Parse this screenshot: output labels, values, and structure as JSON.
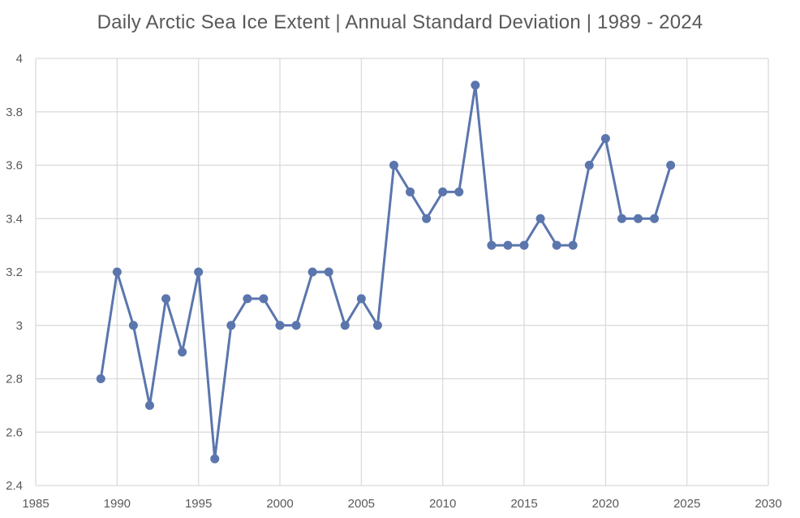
{
  "chart_data": {
    "type": "scatter",
    "title": "Daily Arctic Sea Ice Extent | Annual Standard Deviation | 1989 - 2024",
    "xlabel": "",
    "ylabel": "",
    "xlim": [
      1985,
      2030
    ],
    "ylim": [
      2.4,
      4
    ],
    "x_ticks": [
      1985,
      1990,
      1995,
      2000,
      2005,
      2010,
      2015,
      2020,
      2025,
      2030
    ],
    "y_ticks": [
      "2.4",
      "2.6",
      "2.8",
      "3",
      "3.2",
      "3.4",
      "3.6",
      "3.8",
      "4"
    ],
    "grid": true,
    "line_color": "#5b76ad",
    "x": [
      1989,
      1990,
      1991,
      1992,
      1993,
      1994,
      1995,
      1996,
      1997,
      1998,
      1999,
      2000,
      2001,
      2002,
      2003,
      2004,
      2005,
      2006,
      2007,
      2008,
      2009,
      2010,
      2011,
      2012,
      2013,
      2014,
      2015,
      2016,
      2017,
      2018,
      2019,
      2020,
      2021,
      2022,
      2023,
      2024
    ],
    "y": [
      2.8,
      3.2,
      3.0,
      2.7,
      3.1,
      2.9,
      3.2,
      2.5,
      3.0,
      3.1,
      3.1,
      3.0,
      3.0,
      3.2,
      3.2,
      3.0,
      3.1,
      3.0,
      3.6,
      3.5,
      3.4,
      3.5,
      3.5,
      3.9,
      3.3,
      3.3,
      3.3,
      3.4,
      3.3,
      3.3,
      3.6,
      3.7,
      3.4,
      3.4,
      3.4,
      3.6
    ]
  }
}
